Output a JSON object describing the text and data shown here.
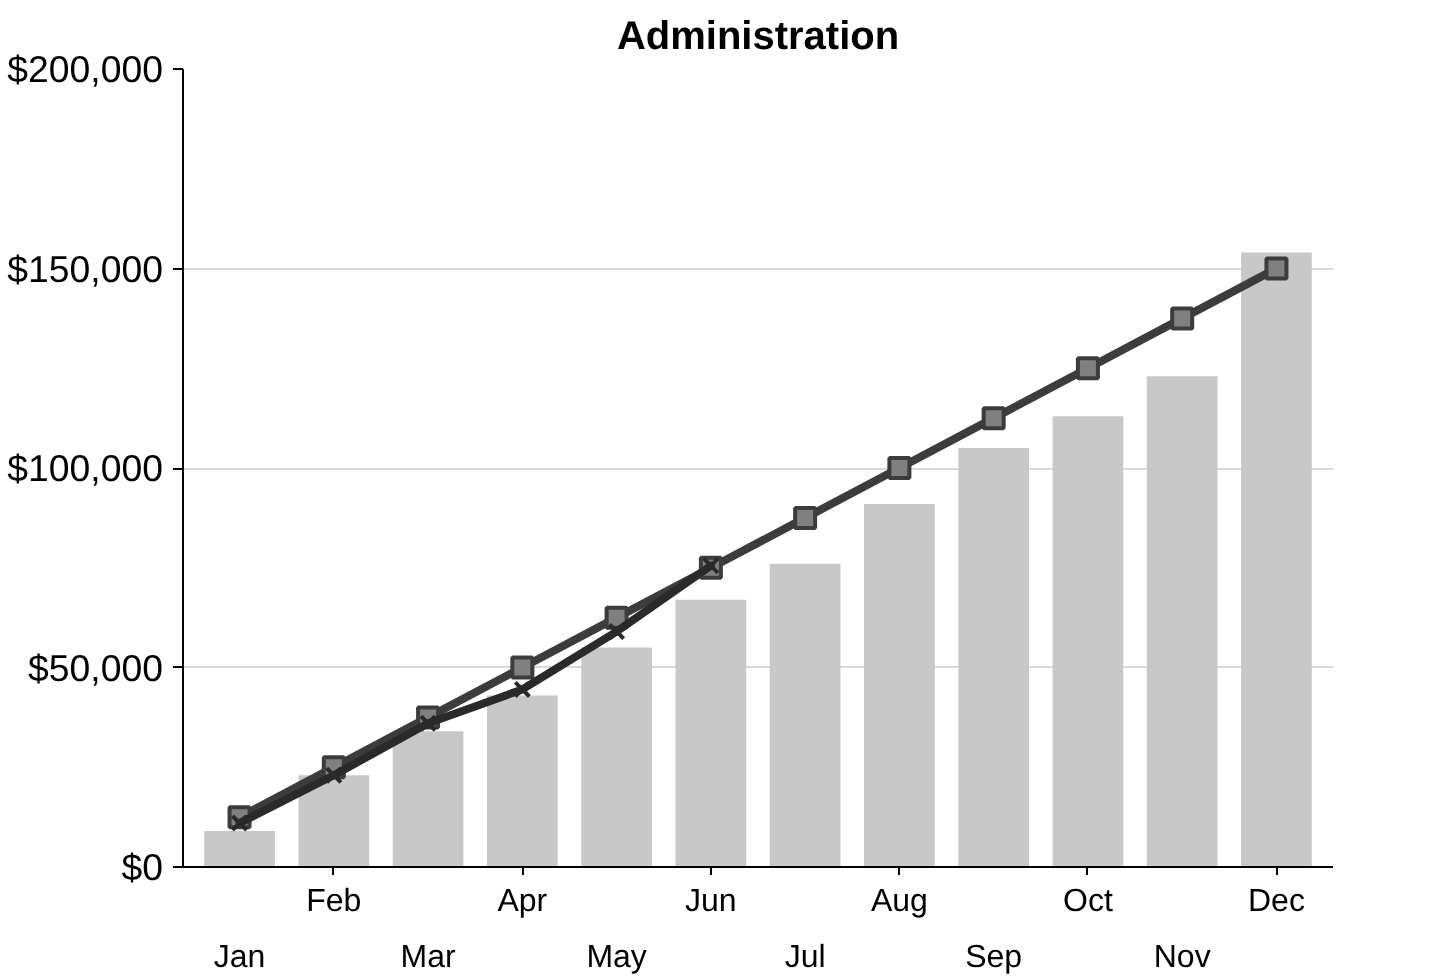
{
  "chart_data": {
    "type": "bar",
    "title": "Administration",
    "categories": [
      "Jan",
      "Feb",
      "Mar",
      "Apr",
      "May",
      "Jun",
      "Jul",
      "Aug",
      "Sep",
      "Oct",
      "Nov",
      "Dec"
    ],
    "series": [
      {
        "color": "#c8c8c8",
        "values": [
          9000,
          23000,
          34000,
          43000,
          55000,
          67000,
          76000,
          91000,
          105000,
          113000,
          123000,
          154000
        ]
      },
      {
        "type": "line",
        "color": "#3c3c3c",
        "marker": "square",
        "values": [
          12500,
          25000,
          37500,
          50000,
          62500,
          75000,
          87500,
          100000,
          112500,
          125000,
          137500,
          150000
        ]
      },
      {
        "type": "line",
        "color": "#2a2a2a",
        "marker": "cross",
        "values": [
          11000,
          23000,
          36000,
          44500,
          59000,
          75500,
          null,
          null,
          null,
          null,
          null,
          null
        ]
      }
    ],
    "ylim": [
      0,
      200000
    ],
    "yticks": [
      {
        "value": 0,
        "label": "$0"
      },
      {
        "value": 50000,
        "label": "$50,000"
      },
      {
        "value": 100000,
        "label": "$100,000"
      },
      {
        "value": 150000,
        "label": "$150,000"
      },
      {
        "value": 200000,
        "label": "$200,000"
      }
    ],
    "grid": "y"
  }
}
